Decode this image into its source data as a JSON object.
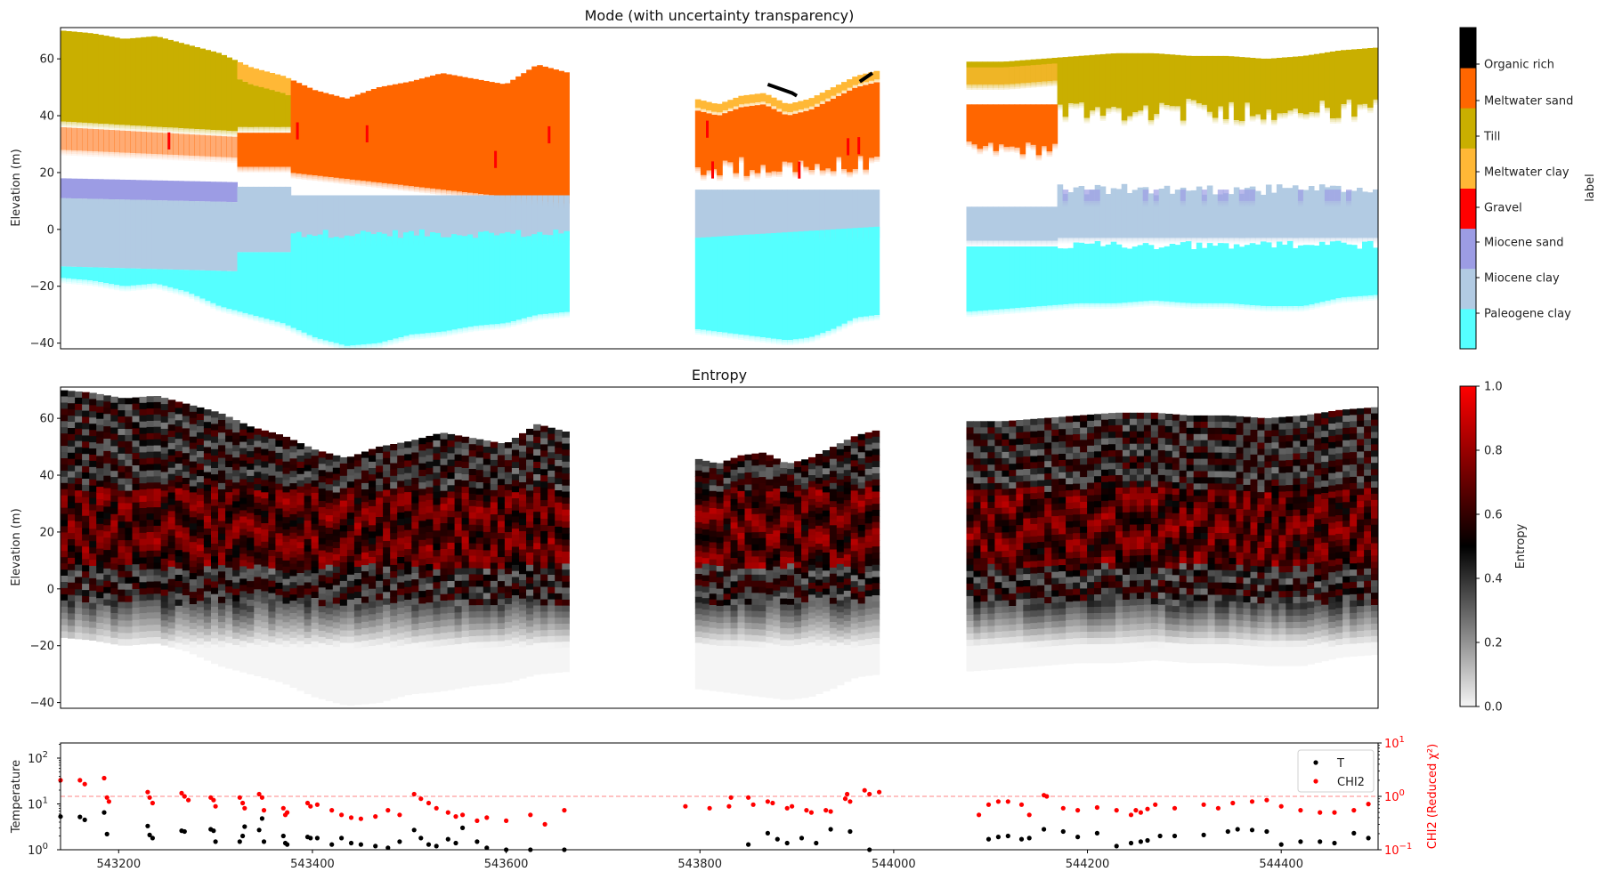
{
  "chart_data": [
    {
      "type": "heatmap",
      "title": "Mode (with uncertainty transparency)",
      "xlabel": "",
      "ylabel": "Elevation (m)",
      "xlim": [
        543140,
        544500
      ],
      "ylim": [
        -42,
        71
      ],
      "yticks": [
        -40,
        -20,
        0,
        20,
        40,
        60
      ],
      "colorbar": {
        "label": "label",
        "categories": [
          "Paleogene clay",
          "Miocene clay",
          "Miocene sand",
          "Gravel",
          "Meltwater clay",
          "Till",
          "Meltwater sand",
          "Organic rich"
        ],
        "colors": [
          "#55ffff",
          "#b2cbe3",
          "#9c9ce4",
          "#ff0000",
          "#ffb836",
          "#c9af00",
          "#ff6600",
          "#000000"
        ]
      },
      "segments": [
        {
          "x_start": 543140,
          "x_end": 543665,
          "top": [
            70,
            69,
            67,
            68,
            65,
            62,
            57,
            54,
            49,
            46,
            50,
            52,
            55,
            53,
            51,
            58,
            55
          ],
          "bottom": [
            -17,
            -18,
            -20,
            -19,
            -22,
            -27,
            -30,
            -33,
            -38,
            -41,
            -40,
            -37,
            -36,
            -34,
            -33,
            -30,
            -29
          ]
        },
        {
          "x_start": 543795,
          "x_end": 543985,
          "top": [
            46,
            44,
            47,
            48,
            44,
            46,
            50,
            54,
            56
          ],
          "bottom": [
            -35,
            -36,
            -37,
            -38,
            -39,
            -38,
            -35,
            -31,
            -30
          ]
        },
        {
          "x_start": 544075,
          "x_end": 544500,
          "top": [
            59,
            59,
            60,
            61,
            62,
            62,
            61,
            61,
            60,
            61,
            63,
            64
          ],
          "bottom": [
            -29,
            -28,
            -27,
            -26,
            -26,
            -25,
            -26,
            -26,
            -27,
            -27,
            -24,
            -23
          ]
        }
      ],
      "layers": [
        {
          "name": "Till",
          "color": "#c9af00",
          "spans": [
            [
              0,
              0.35,
              70,
              38
            ],
            [
              0.35,
              0.5,
              60,
              36
            ],
            [
              0.85,
              1.0,
              61,
              36
            ]
          ]
        },
        {
          "name": "Meltwater clay",
          "color": "#ffb836",
          "spans": [
            [
              0.34,
              0.42,
              58,
              48
            ],
            [
              0.84,
              0.9,
              58,
              48
            ]
          ]
        },
        {
          "name": "Meltwater sand",
          "color": "#ff6600",
          "spans": [
            [
              0.12,
              0.34,
              37,
              30
            ],
            [
              0.34,
              0.72,
              52,
              15
            ],
            [
              0.46,
              0.6,
              48,
              8
            ],
            [
              0.84,
              0.9,
              43,
              28
            ]
          ]
        },
        {
          "name": "Miocene sand",
          "color": "#9c9ce4",
          "spans": [
            [
              0,
              0.2,
              17,
              8
            ]
          ]
        },
        {
          "name": "Miocene clay",
          "color": "#b2cbe3",
          "spans": [
            [
              0,
              0.2,
              12,
              -13
            ],
            [
              0.2,
              0.45,
              14,
              -8
            ],
            [
              0.6,
              1.0,
              10,
              -4
            ]
          ]
        },
        {
          "name": "Paleogene clay",
          "color": "#55ffff",
          "spans": [
            [
              0,
              0.45,
              -12,
              -30
            ],
            [
              0.3,
              0.45,
              -2,
              -41
            ],
            [
              0.6,
              0.74,
              -2,
              -39
            ],
            [
              0.84,
              1.0,
              -5,
              -28
            ]
          ]
        }
      ]
    },
    {
      "type": "heatmap",
      "title": "Entropy",
      "xlabel": "",
      "ylabel": "Elevation (m)",
      "xlim": [
        543140,
        544500
      ],
      "ylim": [
        -42,
        71
      ],
      "yticks": [
        -40,
        -20,
        0,
        20,
        40,
        60
      ],
      "colorbar": {
        "label": "Entropy",
        "range": [
          0.0,
          1.0
        ],
        "ticks": [
          "0.0",
          "0.2",
          "0.4",
          "0.6",
          "0.8",
          "1.0"
        ],
        "colors": [
          "#f5f5f5",
          "#000000",
          "#ff0000"
        ]
      }
    },
    {
      "type": "scatter",
      "title": "",
      "xlabel": "",
      "ylabel": "Temperature",
      "ylabel_right": "CHI2 (Reduced χ²)",
      "xlim": [
        543140,
        544500
      ],
      "xticks": [
        "543200",
        "543400",
        "543600",
        "543800",
        "544000",
        "544200",
        "544400"
      ],
      "ylim_left": [
        1,
        215
      ],
      "ylim_right": [
        0.1,
        10
      ],
      "yscale": "log",
      "yticks_left": [
        "10^0",
        "10^1",
        "10^2"
      ],
      "yticks_right": [
        "10^-1",
        "10^0",
        "10^1"
      ],
      "reference_line": {
        "axis": "right",
        "value": 1.0,
        "style": "dashed",
        "color": "#ff6666"
      },
      "legend": {
        "position": "upper right",
        "entries": [
          {
            "label": "T",
            "color": "#000000"
          },
          {
            "label": "CHI2",
            "color": "#ff0000"
          }
        ]
      },
      "series": [
        {
          "name": "T",
          "axis": "left",
          "color": "#000000",
          "x": [
            543140,
            543160,
            543165,
            543185,
            543188,
            543230,
            543232,
            543235,
            543265,
            543268,
            543295,
            543298,
            543300,
            543325,
            543328,
            543330,
            543345,
            543348,
            543350,
            543370,
            543372,
            543374,
            543395,
            543398,
            543405,
            543420,
            543430,
            543440,
            543450,
            543465,
            543478,
            543490,
            543505,
            543512,
            543520,
            543528,
            543540,
            543548,
            543555,
            543570,
            543580,
            543600,
            543625,
            543660,
            543850,
            543870,
            543880,
            543890,
            543905,
            543920,
            543935,
            543955,
            543975,
            544098,
            544108,
            544118,
            544132,
            544140,
            544155,
            544175,
            544190,
            544210,
            544230,
            544245,
            544255,
            544262,
            544275,
            544290,
            544320,
            544345,
            544355,
            544370,
            544385,
            544400,
            544420,
            544440,
            544455,
            544475,
            544490
          ],
          "y": [
            5.3,
            5.2,
            4.5,
            6.5,
            2.2,
            3.3,
            2.1,
            1.8,
            2.6,
            2.5,
            2.8,
            2.6,
            1.5,
            1.5,
            2.0,
            3.2,
            2.7,
            4.8,
            1.5,
            2.0,
            1.4,
            1.3,
            1.9,
            1.8,
            1.8,
            1.3,
            1.8,
            1.4,
            1.3,
            1.2,
            1.1,
            1.5,
            2.7,
            1.8,
            1.3,
            1.2,
            1.7,
            1.4,
            3.0,
            1.5,
            1.1,
            1.0,
            1.0,
            1.0,
            1.3,
            2.3,
            1.7,
            1.4,
            1.8,
            1.4,
            2.8,
            2.5,
            1.0,
            1.7,
            1.9,
            2.0,
            1.7,
            1.8,
            2.8,
            2.5,
            1.9,
            2.3,
            1.2,
            1.4,
            1.5,
            1.6,
            2.0,
            2.0,
            2.1,
            2.5,
            2.8,
            2.7,
            2.5,
            1.3,
            1.5,
            1.5,
            1.4,
            2.3,
            1.8
          ]
        },
        {
          "name": "CHI2",
          "axis": "right",
          "color": "#ff0000",
          "x": [
            543140,
            543160,
            543165,
            543185,
            543188,
            543190,
            543230,
            543232,
            543235,
            543265,
            543268,
            543272,
            543295,
            543298,
            543300,
            543325,
            543328,
            543330,
            543345,
            543348,
            543350,
            543370,
            543372,
            543374,
            543395,
            543398,
            543405,
            543420,
            543430,
            543440,
            543450,
            543465,
            543478,
            543490,
            543505,
            543512,
            543520,
            543528,
            543540,
            543548,
            543555,
            543570,
            543580,
            543600,
            543625,
            543640,
            543660,
            543785,
            543810,
            543830,
            543832,
            543850,
            543855,
            543870,
            543875,
            543890,
            543895,
            543910,
            543915,
            543930,
            543935,
            543950,
            543952,
            543955,
            543970,
            543975,
            543985,
            544088,
            544098,
            544108,
            544118,
            544132,
            544140,
            544155,
            544158,
            544175,
            544190,
            544210,
            544230,
            544245,
            544250,
            544255,
            544262,
            544270,
            544290,
            544320,
            544335,
            544350,
            544370,
            544385,
            544400,
            544420,
            544440,
            544455,
            544475,
            544490
          ],
          "y": [
            2.0,
            2.0,
            1.7,
            2.2,
            0.95,
            0.8,
            1.2,
            0.95,
            0.75,
            1.15,
            1.0,
            0.85,
            0.95,
            0.85,
            0.65,
            0.95,
            0.75,
            0.6,
            1.1,
            0.95,
            0.55,
            0.6,
            0.45,
            0.5,
            0.75,
            0.65,
            0.7,
            0.55,
            0.45,
            0.4,
            0.38,
            0.42,
            0.55,
            0.45,
            1.1,
            0.9,
            0.75,
            0.6,
            0.5,
            0.42,
            0.45,
            0.35,
            0.4,
            0.35,
            0.45,
            0.3,
            0.55,
            0.65,
            0.6,
            0.65,
            0.95,
            0.95,
            0.7,
            0.8,
            0.75,
            0.6,
            0.65,
            0.55,
            0.5,
            0.55,
            0.52,
            0.9,
            1.1,
            0.8,
            1.3,
            1.1,
            1.2,
            0.45,
            0.7,
            0.8,
            0.8,
            0.7,
            0.45,
            1.05,
            1.0,
            0.6,
            0.55,
            0.62,
            0.55,
            0.45,
            0.55,
            0.5,
            0.58,
            0.7,
            0.6,
            0.7,
            0.6,
            0.75,
            0.8,
            0.85,
            0.65,
            0.55,
            0.5,
            0.5,
            0.55,
            0.72
          ]
        }
      ]
    }
  ],
  "labels": {
    "top_title": "Mode (with uncertainty transparency)",
    "mid_title": "Entropy",
    "elevation_label": "Elevation (m)",
    "label_cbar_title": "label",
    "entropy_cbar_title": "Entropy",
    "temperature_label": "Temperature",
    "chi2_label": "CHI2 (Reduced χ²)",
    "legend_t": "T",
    "legend_chi2": "CHI2"
  }
}
